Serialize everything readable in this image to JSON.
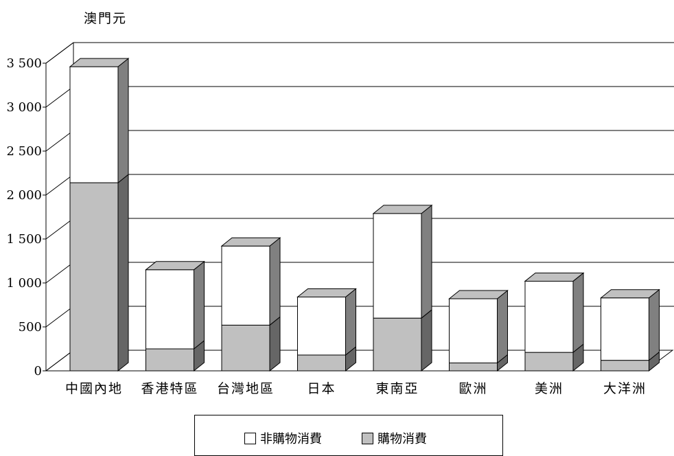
{
  "chart_data": {
    "type": "bar",
    "stacked": true,
    "three_d": true,
    "unit_label": "澳門元",
    "categories": [
      "中國內地",
      "香港特區",
      "台灣地區",
      "日本",
      "東南亞",
      "歐洲",
      "美洲",
      "大洋洲"
    ],
    "series": [
      {
        "name": "購物消費",
        "values": [
          2140,
          250,
          520,
          180,
          600,
          90,
          210,
          120
        ],
        "color": "#c0c0c0",
        "side": "#666666",
        "top": "#a8a8a8"
      },
      {
        "name": "非購物消費",
        "values": [
          1320,
          900,
          900,
          660,
          1190,
          730,
          810,
          710
        ],
        "color": "#ffffff",
        "side": "#808080",
        "top": "#c0c0c0"
      }
    ],
    "y_ticks": [
      "0",
      "500",
      "1 000",
      "1 500",
      "2 000",
      "2 500",
      "3 000",
      "3 500"
    ],
    "ylim": [
      0,
      3500
    ],
    "grid": true,
    "legend_placement": "bottom",
    "legend_order": [
      "非購物消費",
      "購物消費"
    ]
  }
}
